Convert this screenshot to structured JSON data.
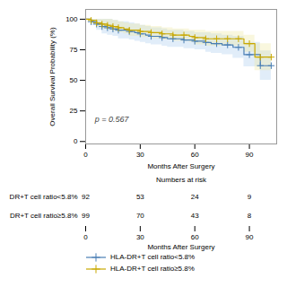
{
  "chart_data": {
    "type": "line",
    "line_style": "step",
    "marker": "plus",
    "legend": "bottom",
    "xlabel": "Months After Surgery",
    "ylabel": "Overall Survival Probability (%)",
    "xlim": [
      0,
      105
    ],
    "ylim": [
      -2,
      108
    ],
    "xticks": [
      0,
      30,
      60,
      90
    ],
    "yticks": [
      0,
      25,
      50,
      75,
      100
    ],
    "x": [
      0,
      3,
      6,
      9,
      12,
      15,
      18,
      21,
      24,
      27,
      30,
      33,
      36,
      39,
      42,
      45,
      48,
      51,
      54,
      57,
      60,
      63,
      66,
      69,
      72,
      75,
      78,
      81,
      84,
      87,
      90,
      93,
      96,
      99,
      102
    ],
    "series": [
      {
        "name": "HLA-DR+T cell ratio<5.8%",
        "color": "#4a7fb5",
        "ci_color": "#aaccee",
        "values": [
          100,
          98,
          96,
          94,
          93,
          92,
          91,
          91,
          90,
          89,
          88,
          87,
          86,
          86,
          85,
          84,
          84,
          84,
          83,
          83,
          82,
          82,
          81,
          80,
          80,
          79,
          79,
          77,
          77,
          71,
          71,
          71,
          62,
          62,
          62
        ],
        "ci_lower": [
          100,
          95,
          91,
          88,
          87,
          86,
          84,
          84,
          83,
          82,
          81,
          80,
          79,
          79,
          78,
          77,
          77,
          77,
          76,
          76,
          75,
          75,
          73,
          72,
          72,
          71,
          71,
          68,
          68,
          61,
          61,
          61,
          50,
          50,
          50
        ],
        "ci_upper": [
          100,
          100,
          100,
          100,
          100,
          99,
          98,
          98,
          97,
          96,
          95,
          94,
          93,
          93,
          92,
          91,
          91,
          91,
          90,
          90,
          89,
          89,
          89,
          88,
          88,
          87,
          87,
          86,
          86,
          81,
          81,
          81,
          74,
          74,
          74
        ],
        "censored": {
          "x": [
            3,
            6,
            9,
            12,
            15,
            18,
            24,
            30,
            36,
            42,
            48,
            54,
            60,
            66,
            72,
            78,
            84,
            90,
            96,
            102
          ],
          "values": [
            98,
            96,
            94,
            93,
            92,
            91,
            90,
            88,
            86,
            85,
            84,
            83,
            82,
            81,
            80,
            79,
            77,
            71,
            62,
            62
          ]
        }
      },
      {
        "name": "HLA-DR+T cell ratio≥5.8%",
        "color": "#c8a800",
        "ci_color": "#eee8a0",
        "values": [
          100,
          99,
          97,
          96,
          95,
          94,
          93,
          92,
          91,
          91,
          90,
          90,
          89,
          89,
          88,
          88,
          87,
          87,
          87,
          86,
          85,
          85,
          84,
          84,
          84,
          84,
          84,
          84,
          84,
          80,
          80,
          69,
          69,
          69,
          69
        ],
        "ci_lower": [
          100,
          97,
          94,
          92,
          91,
          90,
          89,
          88,
          86,
          86,
          85,
          85,
          84,
          84,
          83,
          83,
          82,
          82,
          82,
          81,
          79,
          79,
          78,
          78,
          78,
          78,
          78,
          78,
          78,
          73,
          73,
          58,
          58,
          58,
          58
        ],
        "ci_upper": [
          100,
          100,
          100,
          100,
          100,
          99,
          98,
          97,
          96,
          96,
          95,
          95,
          94,
          94,
          93,
          93,
          92,
          92,
          92,
          91,
          91,
          91,
          90,
          90,
          90,
          90,
          90,
          90,
          90,
          87,
          87,
          80,
          80,
          80,
          80
        ],
        "censored": {
          "x": [
            3,
            6,
            9,
            12,
            15,
            18,
            24,
            30,
            36,
            42,
            48,
            54,
            60,
            66,
            72,
            78,
            84,
            90,
            96,
            102
          ],
          "values": [
            99,
            97,
            96,
            95,
            94,
            93,
            91,
            90,
            89,
            88,
            87,
            87,
            85,
            84,
            84,
            84,
            84,
            80,
            69,
            69
          ]
        }
      }
    ],
    "annotations": [
      {
        "text": "p = 0.567",
        "x": 5,
        "y": 18
      }
    ],
    "risk_table": {
      "title": "Numbers at risk",
      "x": [
        0,
        30,
        60,
        90
      ],
      "rows": [
        {
          "label": "DR+T cell ratio<5.8%",
          "values": [
            92,
            53,
            24,
            9
          ]
        },
        {
          "label": "DR+T cell ratio≥5.8%",
          "values": [
            99,
            70,
            43,
            8
          ]
        }
      ]
    }
  }
}
